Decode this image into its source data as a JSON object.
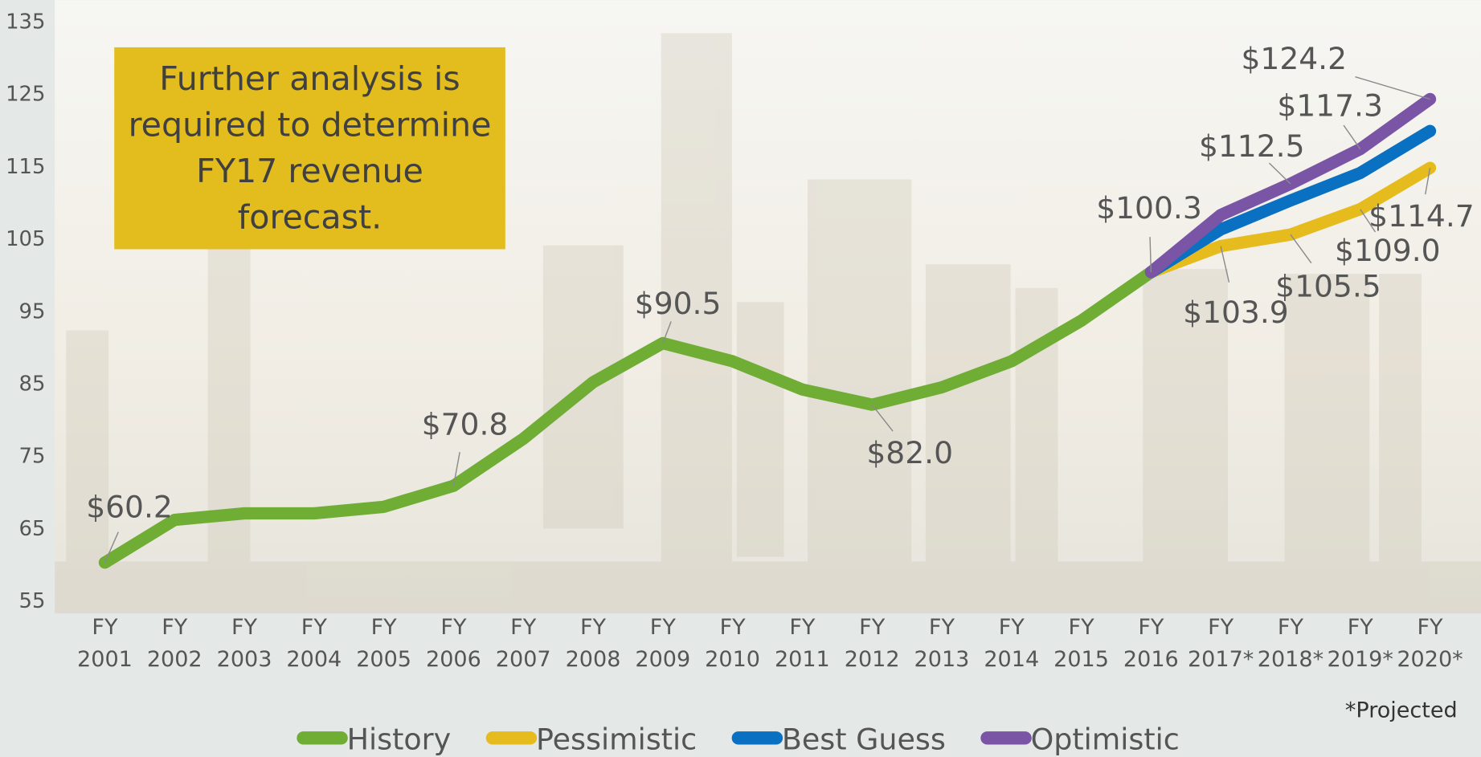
{
  "chart_data": {
    "type": "line",
    "annotation": "Further analysis is\nrequired to determine\nFY17 revenue\nforecast.",
    "footnote": "*Projected",
    "categories": [
      "FY 2001",
      "FY 2002",
      "FY 2003",
      "FY 2004",
      "FY 2005",
      "FY 2006",
      "FY 2007",
      "FY 2008",
      "FY 2009",
      "FY 2010",
      "FY 2011",
      "FY 2012",
      "FY 2013",
      "FY 2014",
      "FY 2015",
      "FY 2016",
      "FY 2017*",
      "FY 2018*",
      "FY 2019*",
      "FY 2020*"
    ],
    "ylim": [
      55,
      135
    ],
    "yticks": [
      55,
      65,
      75,
      85,
      95,
      105,
      115,
      125,
      135
    ],
    "legend": "bottom",
    "series": [
      {
        "name": "History",
        "color": "#70ad35",
        "values": [
          60.2,
          66.1,
          67.0,
          67.0,
          67.9,
          70.8,
          77.3,
          85.1,
          90.5,
          88.0,
          84.1,
          82.0,
          84.4,
          88.0,
          93.6,
          100.3,
          null,
          null,
          null,
          null
        ],
        "value_labels": [
          "$60.2",
          null,
          null,
          null,
          null,
          "$70.8",
          null,
          null,
          "$90.5",
          null,
          null,
          "$82.0",
          null,
          null,
          null,
          "$100.3",
          null,
          null,
          null,
          null
        ]
      },
      {
        "name": "Pessimistic",
        "color": "#e6bb1e",
        "values": [
          null,
          null,
          null,
          null,
          null,
          null,
          null,
          null,
          null,
          null,
          null,
          null,
          null,
          null,
          null,
          100.3,
          103.9,
          105.5,
          109.0,
          114.7
        ],
        "value_labels": [
          null,
          null,
          null,
          null,
          null,
          null,
          null,
          null,
          null,
          null,
          null,
          null,
          null,
          null,
          null,
          null,
          "$103.9",
          "$105.5",
          "$109.0",
          "$114.7"
        ]
      },
      {
        "name": "Best Guess",
        "color": "#0a70c2",
        "values": [
          null,
          null,
          null,
          null,
          null,
          null,
          null,
          null,
          null,
          null,
          null,
          null,
          null,
          null,
          null,
          100.3,
          106.2,
          110.2,
          114.0,
          119.8
        ]
      },
      {
        "name": "Optimistic",
        "color": "#7a55a6",
        "values": [
          null,
          null,
          null,
          null,
          null,
          null,
          null,
          null,
          null,
          null,
          null,
          null,
          null,
          null,
          null,
          100.3,
          108.2,
          112.5,
          117.3,
          124.2
        ],
        "value_labels": [
          null,
          null,
          null,
          null,
          null,
          null,
          null,
          null,
          null,
          null,
          null,
          null,
          null,
          null,
          null,
          null,
          null,
          "$112.5",
          "$117.3",
          "$124.2"
        ]
      }
    ]
  }
}
